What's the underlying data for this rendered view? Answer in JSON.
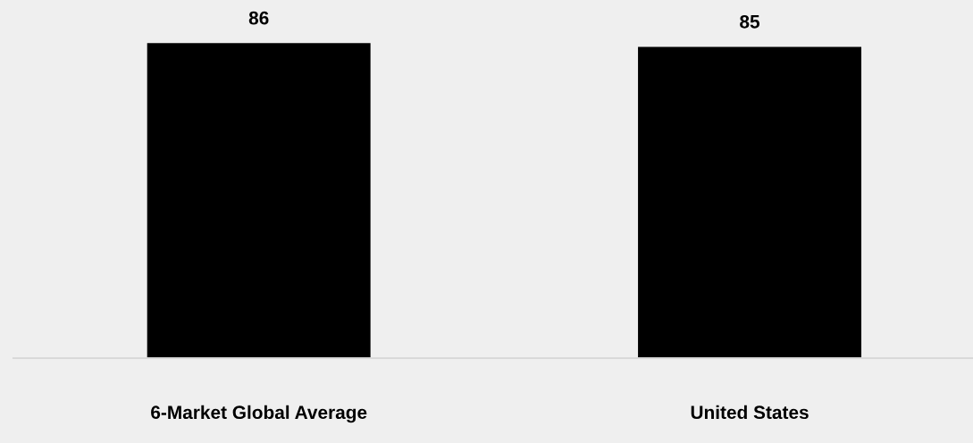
{
  "chart_data": {
    "type": "bar",
    "categories": [
      "6-Market Global Average",
      "United States"
    ],
    "values": [
      86,
      85
    ],
    "color": "#000000",
    "data_labels": true,
    "grid": false,
    "legend": false
  }
}
